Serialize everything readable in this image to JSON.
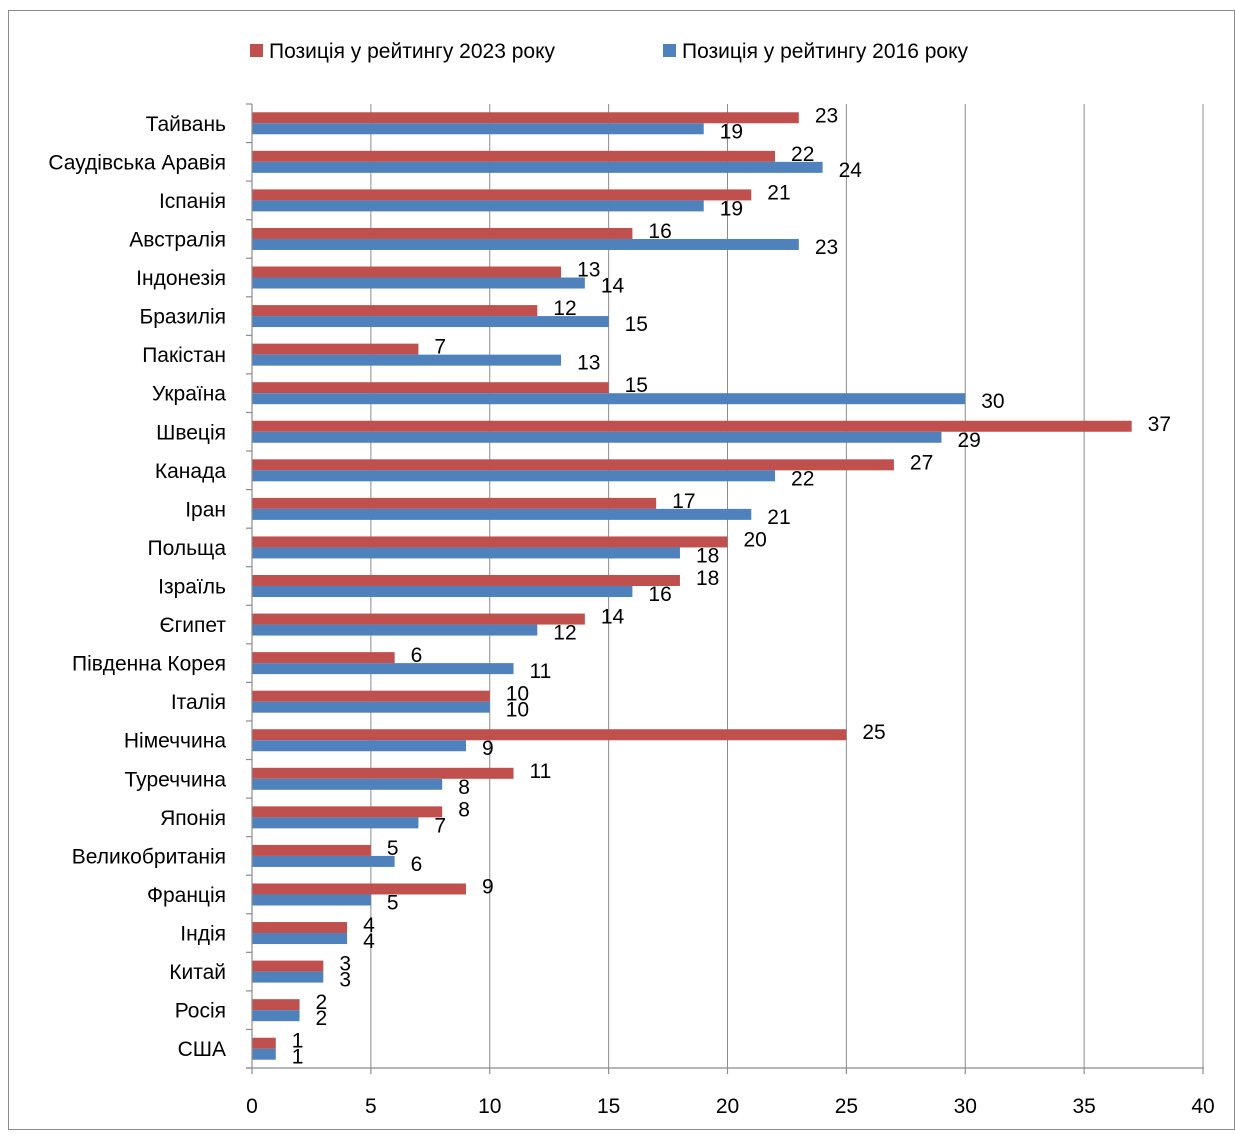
{
  "chart_data": {
    "type": "bar",
    "orientation": "horizontal",
    "title": "",
    "xlabel": "",
    "ylabel": "",
    "xlim": [
      0,
      40
    ],
    "x_ticks": [
      0,
      5,
      10,
      15,
      20,
      25,
      30,
      35,
      40
    ],
    "grid": "vertical",
    "legend_position": "top",
    "categories": [
      "Тайвань",
      "Саудівська Аравія",
      "Іспанія",
      "Австралія",
      "Індонезія",
      "Бразилія",
      "Пакістан",
      "Україна",
      "Швеція",
      "Канада",
      "Іран",
      "Польща",
      "Ізраїль",
      "Єгипет",
      "Південна Корея",
      "Італія",
      "Німеччина",
      "Туреччина",
      "Японія",
      "Великобританія",
      "Франція",
      "Індія",
      "Китай",
      "Росія",
      "США"
    ],
    "series": [
      {
        "name": "Позиція у рейтингу 2023 року",
        "color": "#C0504D",
        "values": [
          23,
          22,
          21,
          16,
          13,
          12,
          7,
          15,
          37,
          27,
          17,
          20,
          18,
          14,
          6,
          10,
          25,
          11,
          8,
          5,
          9,
          4,
          3,
          2,
          1
        ]
      },
      {
        "name": "Позиція у рейтингу 2016 року",
        "color": "#4F81BD",
        "values": [
          19,
          24,
          19,
          23,
          14,
          15,
          13,
          30,
          29,
          22,
          21,
          18,
          16,
          12,
          11,
          10,
          9,
          8,
          7,
          6,
          5,
          4,
          3,
          2,
          1
        ]
      }
    ]
  }
}
